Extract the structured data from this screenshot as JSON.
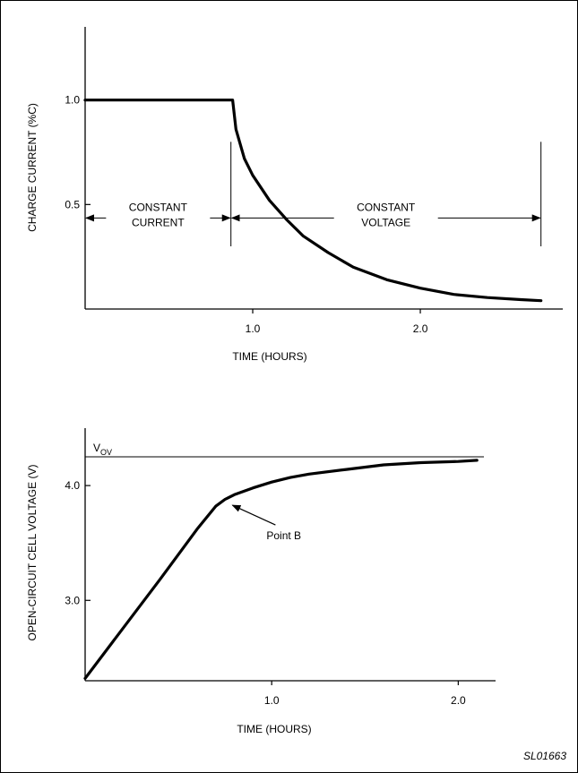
{
  "figure_code": "SL01663",
  "chart_data": [
    {
      "type": "line",
      "xlabel": "TIME (HOURS)",
      "ylabel": "CHARGE CURRENT (%C)",
      "xlim": [
        0,
        2.85
      ],
      "ylim": [
        0,
        1.35
      ],
      "x_ticks": [
        {
          "value": 1.0,
          "label": "1.0"
        },
        {
          "value": 2.0,
          "label": "2.0"
        }
      ],
      "y_ticks": [
        {
          "value": 0.5,
          "label": "0.5"
        },
        {
          "value": 1.0,
          "label": "1.0"
        }
      ],
      "series": [
        {
          "x": [
            0,
            0.88,
            0.9,
            0.95,
            1.0,
            1.1,
            1.2,
            1.3,
            1.45,
            1.6,
            1.8,
            2.0,
            2.2,
            2.4,
            2.6,
            2.72
          ],
          "y": [
            1.0,
            1.0,
            0.86,
            0.72,
            0.64,
            0.52,
            0.43,
            0.35,
            0.27,
            0.2,
            0.14,
            0.1,
            0.07,
            0.055,
            0.045,
            0.04
          ]
        }
      ],
      "annotations": {
        "left_region": [
          "CONSTANT",
          "CURRENT"
        ],
        "right_region": [
          "CONSTANT",
          "VOLTAGE"
        ],
        "boundary_x": 0.87,
        "end_x": 2.72,
        "arrow_y": 0.5
      }
    },
    {
      "type": "line",
      "xlabel": "TIME (HOURS)",
      "ylabel": "OPEN-CIRCUIT CELL VOLTAGE (V)",
      "xlim": [
        0,
        2.2
      ],
      "ylim": [
        2.3,
        4.5
      ],
      "x_ticks": [
        {
          "value": 1.0,
          "label": "1.0"
        },
        {
          "value": 2.0,
          "label": "2.0"
        }
      ],
      "y_ticks": [
        {
          "value": 3.0,
          "label": "3.0"
        },
        {
          "value": 4.0,
          "label": "4.0"
        }
      ],
      "series": [
        {
          "x": [
            0,
            0.2,
            0.4,
            0.6,
            0.7,
            0.75,
            0.8,
            0.9,
            1.0,
            1.1,
            1.2,
            1.4,
            1.6,
            1.8,
            2.0,
            2.1
          ],
          "y": [
            2.32,
            2.75,
            3.18,
            3.62,
            3.82,
            3.88,
            3.92,
            3.98,
            4.03,
            4.07,
            4.1,
            4.14,
            4.18,
            4.2,
            4.21,
            4.22
          ]
        }
      ],
      "reference_line": {
        "label": "V",
        "subscript": "OV",
        "y": 4.25
      },
      "point_annotation": {
        "label": "Point B",
        "x": 0.78,
        "y": 3.86
      }
    }
  ]
}
